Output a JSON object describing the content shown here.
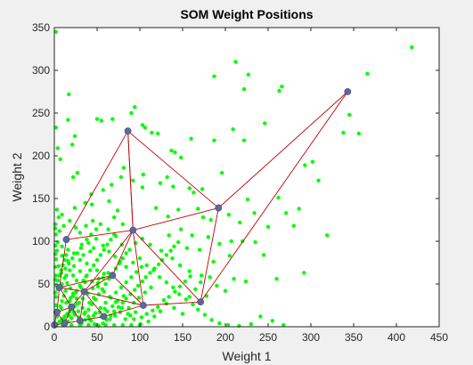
{
  "chart_data": {
    "type": "scatter",
    "title": "SOM Weight Positions",
    "xlabel": "Weight 1",
    "ylabel": "Weight 2",
    "xlim": [
      0,
      450
    ],
    "ylim": [
      0,
      350
    ],
    "xticks": [
      0,
      50,
      100,
      150,
      200,
      250,
      300,
      350,
      400,
      450
    ],
    "yticks": [
      0,
      50,
      100,
      150,
      200,
      250,
      300,
      350
    ],
    "grid": false,
    "colors": {
      "inputs": "#00ff00",
      "neurons": "#5b6a9a",
      "neighbor_links": "#c00000",
      "background": "#ffffff",
      "figure_background": "#f0f0f0"
    },
    "neurons": [
      {
        "id": "n1",
        "x": 0,
        "y": 2
      },
      {
        "id": "n2",
        "x": 3,
        "y": 17
      },
      {
        "id": "n3",
        "x": 12,
        "y": 4
      },
      {
        "id": "n4",
        "x": 20,
        "y": 23
      },
      {
        "id": "n5",
        "x": 30,
        "y": 7
      },
      {
        "id": "n6",
        "x": 35,
        "y": 41
      },
      {
        "id": "n7",
        "x": 6,
        "y": 46
      },
      {
        "id": "n8",
        "x": 58,
        "y": 12
      },
      {
        "id": "n9",
        "x": 14,
        "y": 102
      },
      {
        "id": "n10",
        "x": 68,
        "y": 60
      },
      {
        "id": "n11",
        "x": 92,
        "y": 113
      },
      {
        "id": "n12",
        "x": 104,
        "y": 25
      },
      {
        "id": "n13",
        "x": 86,
        "y": 229
      },
      {
        "id": "n14",
        "x": 192,
        "y": 139
      },
      {
        "id": "n15",
        "x": 171,
        "y": 29
      },
      {
        "id": "n16",
        "x": 343,
        "y": 275
      }
    ],
    "links": [
      [
        "n1",
        "n2"
      ],
      [
        "n1",
        "n3"
      ],
      [
        "n2",
        "n3"
      ],
      [
        "n2",
        "n4"
      ],
      [
        "n3",
        "n4"
      ],
      [
        "n3",
        "n5"
      ],
      [
        "n4",
        "n5"
      ],
      [
        "n2",
        "n7"
      ],
      [
        "n4",
        "n6"
      ],
      [
        "n4",
        "n7"
      ],
      [
        "n5",
        "n6"
      ],
      [
        "n5",
        "n8"
      ],
      [
        "n6",
        "n8"
      ],
      [
        "n6",
        "n7"
      ],
      [
        "n6",
        "n10"
      ],
      [
        "n6",
        "n11"
      ],
      [
        "n6",
        "n12"
      ],
      [
        "n7",
        "n9"
      ],
      [
        "n7",
        "n10"
      ],
      [
        "n8",
        "n12"
      ],
      [
        "n9",
        "n11"
      ],
      [
        "n9",
        "n13"
      ],
      [
        "n10",
        "n11"
      ],
      [
        "n10",
        "n12"
      ],
      [
        "n11",
        "n12"
      ],
      [
        "n11",
        "n13"
      ],
      [
        "n11",
        "n14"
      ],
      [
        "n11",
        "n15"
      ],
      [
        "n12",
        "n15"
      ],
      [
        "n13",
        "n14"
      ],
      [
        "n14",
        "n15"
      ],
      [
        "n14",
        "n16"
      ],
      [
        "n15",
        "n16"
      ],
      [
        "n13",
        "n11"
      ]
    ],
    "inputs": [
      [
        2,
        345
      ],
      [
        418,
        327
      ],
      [
        366,
        296
      ],
      [
        338,
        227
      ],
      [
        345,
        248
      ],
      [
        212,
        310
      ],
      [
        227,
        295
      ],
      [
        266,
        281
      ],
      [
        187,
        293
      ],
      [
        222,
        278
      ],
      [
        263,
        276
      ],
      [
        94,
        257
      ],
      [
        90,
        250
      ],
      [
        68,
        243
      ],
      [
        17,
        272
      ],
      [
        50,
        243
      ],
      [
        55,
        241
      ],
      [
        103,
        236
      ],
      [
        106,
        233
      ],
      [
        114,
        227
      ],
      [
        16,
        242
      ],
      [
        24,
        223
      ],
      [
        21,
        213
      ],
      [
        137,
        206
      ],
      [
        148,
        198
      ],
      [
        196,
        180
      ],
      [
        209,
        231
      ],
      [
        222,
        218
      ],
      [
        246,
        238
      ],
      [
        187,
        218
      ],
      [
        160,
        220
      ],
      [
        141,
        204
      ],
      [
        121,
        226
      ],
      [
        2,
        233
      ],
      [
        4,
        209
      ],
      [
        7,
        196
      ],
      [
        293,
        189
      ],
      [
        309,
        171
      ],
      [
        302,
        193
      ],
      [
        356,
        226
      ],
      [
        27,
        180
      ],
      [
        22,
        175
      ],
      [
        78,
        175
      ],
      [
        81,
        186
      ],
      [
        104,
        178
      ],
      [
        132,
        175
      ],
      [
        158,
        162
      ],
      [
        163,
        157
      ],
      [
        173,
        161
      ],
      [
        139,
        164
      ],
      [
        124,
        168
      ],
      [
        103,
        163
      ],
      [
        92,
        171
      ],
      [
        43,
        155
      ],
      [
        57,
        160
      ],
      [
        67,
        166
      ],
      [
        36,
        145
      ],
      [
        44,
        143
      ],
      [
        24,
        139
      ],
      [
        3,
        137
      ],
      [
        5,
        128
      ],
      [
        9,
        131
      ],
      [
        226,
        149
      ],
      [
        234,
        133
      ],
      [
        204,
        131
      ],
      [
        262,
        151
      ],
      [
        271,
        133
      ],
      [
        286,
        138
      ],
      [
        250,
        117
      ],
      [
        217,
        122
      ],
      [
        183,
        125
      ],
      [
        174,
        128
      ],
      [
        168,
        138
      ],
      [
        145,
        137
      ],
      [
        133,
        129
      ],
      [
        119,
        139
      ],
      [
        74,
        136
      ],
      [
        64,
        147
      ],
      [
        70,
        128
      ],
      [
        80,
        120
      ],
      [
        280,
        118
      ],
      [
        319,
        107
      ],
      [
        220,
        100
      ],
      [
        235,
        99
      ],
      [
        207,
        100
      ],
      [
        193,
        97
      ],
      [
        180,
        105
      ],
      [
        161,
        107
      ],
      [
        148,
        114
      ],
      [
        134,
        107
      ],
      [
        155,
        92
      ],
      [
        170,
        90
      ],
      [
        186,
        76
      ],
      [
        205,
        83
      ],
      [
        245,
        84
      ],
      [
        292,
        63
      ],
      [
        260,
        56
      ],
      [
        224,
        53
      ],
      [
        210,
        56
      ],
      [
        200,
        42
      ],
      [
        190,
        48
      ],
      [
        172,
        60
      ],
      [
        158,
        65
      ],
      [
        147,
        72
      ],
      [
        138,
        80
      ],
      [
        125,
        89
      ],
      [
        112,
        96
      ],
      [
        103,
        103
      ],
      [
        95,
        98
      ],
      [
        88,
        90
      ],
      [
        79,
        96
      ],
      [
        72,
        106
      ],
      [
        63,
        114
      ],
      [
        54,
        120
      ],
      [
        45,
        124
      ],
      [
        37,
        118
      ],
      [
        30,
        110
      ],
      [
        25,
        116
      ],
      [
        18,
        124
      ],
      [
        11,
        118
      ],
      [
        6,
        112
      ],
      [
        2,
        108
      ],
      [
        4,
        99
      ],
      [
        9,
        94
      ],
      [
        16,
        90
      ],
      [
        23,
        86
      ],
      [
        31,
        92
      ],
      [
        40,
        98
      ],
      [
        49,
        103
      ],
      [
        57,
        95
      ],
      [
        64,
        88
      ],
      [
        71,
        82
      ],
      [
        77,
        76
      ],
      [
        84,
        70
      ],
      [
        92,
        75
      ],
      [
        100,
        80
      ],
      [
        108,
        72
      ],
      [
        116,
        66
      ],
      [
        123,
        58
      ],
      [
        131,
        52
      ],
      [
        139,
        46
      ],
      [
        146,
        38
      ],
      [
        154,
        32
      ],
      [
        162,
        26
      ],
      [
        168,
        20
      ],
      [
        176,
        14
      ],
      [
        184,
        8
      ],
      [
        193,
        4
      ],
      [
        203,
        2
      ],
      [
        216,
        1
      ],
      [
        230,
        3
      ],
      [
        241,
        12
      ],
      [
        255,
        7
      ],
      [
        268,
        2
      ],
      [
        150,
        15
      ],
      [
        140,
        22
      ],
      [
        131,
        27
      ],
      [
        124,
        18
      ],
      [
        117,
        12
      ],
      [
        110,
        6
      ],
      [
        101,
        3
      ],
      [
        93,
        9
      ],
      [
        86,
        15
      ],
      [
        79,
        22
      ],
      [
        72,
        29
      ],
      [
        65,
        35
      ],
      [
        58,
        41
      ],
      [
        51,
        47
      ],
      [
        44,
        53
      ],
      [
        37,
        59
      ],
      [
        30,
        65
      ],
      [
        23,
        71
      ],
      [
        16,
        77
      ],
      [
        9,
        83
      ],
      [
        3,
        89
      ],
      [
        2,
        79
      ],
      [
        5,
        71
      ],
      [
        8,
        63
      ],
      [
        12,
        57
      ],
      [
        15,
        51
      ],
      [
        19,
        45
      ],
      [
        22,
        39
      ],
      [
        26,
        33
      ],
      [
        29,
        28
      ],
      [
        33,
        22
      ],
      [
        36,
        17
      ],
      [
        40,
        12
      ],
      [
        43,
        7
      ],
      [
        47,
        3
      ],
      [
        52,
        1
      ],
      [
        57,
        4
      ],
      [
        61,
        8
      ],
      [
        66,
        13
      ],
      [
        70,
        18
      ],
      [
        75,
        23
      ],
      [
        80,
        28
      ],
      [
        84,
        33
      ],
      [
        89,
        38
      ],
      [
        94,
        43
      ],
      [
        98,
        48
      ],
      [
        103,
        53
      ],
      [
        107,
        58
      ],
      [
        112,
        63
      ],
      [
        117,
        68
      ],
      [
        122,
        73
      ],
      [
        126,
        78
      ],
      [
        131,
        84
      ],
      [
        136,
        89
      ],
      [
        140,
        94
      ],
      [
        145,
        99
      ],
      [
        3,
        3
      ],
      [
        6,
        6
      ],
      [
        9,
        9
      ],
      [
        12,
        12
      ],
      [
        15,
        15
      ],
      [
        18,
        18
      ],
      [
        21,
        21
      ],
      [
        24,
        24
      ],
      [
        27,
        27
      ],
      [
        3,
        12
      ],
      [
        5,
        18
      ],
      [
        7,
        24
      ],
      [
        9,
        30
      ],
      [
        11,
        36
      ],
      [
        13,
        42
      ],
      [
        2,
        48
      ],
      [
        4,
        54
      ],
      [
        6,
        60
      ],
      [
        8,
        66
      ],
      [
        10,
        72
      ],
      [
        12,
        78
      ],
      [
        14,
        84
      ],
      [
        16,
        6
      ],
      [
        20,
        10
      ],
      [
        24,
        14
      ],
      [
        28,
        18
      ],
      [
        32,
        4
      ],
      [
        36,
        8
      ],
      [
        40,
        20
      ],
      [
        44,
        26
      ],
      [
        48,
        32
      ],
      [
        52,
        38
      ],
      [
        56,
        44
      ],
      [
        60,
        50
      ],
      [
        64,
        56
      ],
      [
        68,
        62
      ],
      [
        72,
        68
      ],
      [
        76,
        74
      ],
      [
        80,
        80
      ],
      [
        84,
        86
      ],
      [
        18,
        30
      ],
      [
        22,
        36
      ],
      [
        26,
        42
      ],
      [
        30,
        48
      ],
      [
        34,
        54
      ],
      [
        38,
        60
      ],
      [
        42,
        66
      ],
      [
        46,
        72
      ],
      [
        50,
        78
      ],
      [
        54,
        84
      ],
      [
        58,
        90
      ],
      [
        62,
        96
      ],
      [
        66,
        102
      ],
      [
        70,
        108
      ],
      [
        33,
        33
      ],
      [
        39,
        39
      ],
      [
        45,
        45
      ],
      [
        51,
        51
      ],
      [
        57,
        57
      ],
      [
        63,
        63
      ],
      [
        10,
        2
      ],
      [
        20,
        2
      ],
      [
        30,
        2
      ],
      [
        40,
        2
      ],
      [
        50,
        2
      ],
      [
        60,
        2
      ],
      [
        70,
        2
      ],
      [
        80,
        2
      ],
      [
        90,
        2
      ],
      [
        100,
        2
      ],
      [
        1,
        40
      ],
      [
        1,
        55
      ],
      [
        1,
        70
      ],
      [
        1,
        85
      ],
      [
        1,
        95
      ],
      [
        1,
        115
      ],
      [
        1,
        120
      ],
      [
        2,
        25
      ],
      [
        2,
        35
      ],
      [
        2,
        60
      ],
      [
        48,
        16
      ],
      [
        54,
        22
      ],
      [
        60,
        28
      ],
      [
        66,
        34
      ],
      [
        72,
        40
      ],
      [
        78,
        46
      ],
      [
        84,
        52
      ],
      [
        90,
        58
      ],
      [
        96,
        64
      ],
      [
        102,
        70
      ],
      [
        14,
        60
      ],
      [
        18,
        66
      ],
      [
        22,
        60
      ],
      [
        26,
        54
      ],
      [
        30,
        78
      ],
      [
        34,
        84
      ],
      [
        38,
        74
      ],
      [
        42,
        88
      ],
      [
        46,
        92
      ],
      [
        50,
        66
      ],
      [
        55,
        12
      ],
      [
        62,
        18
      ],
      [
        68,
        24
      ],
      [
        74,
        30
      ],
      [
        81,
        36
      ],
      [
        87,
        22
      ],
      [
        93,
        28
      ],
      [
        99,
        34
      ],
      [
        106,
        40
      ],
      [
        113,
        46
      ],
      [
        8,
        22
      ],
      [
        14,
        28
      ],
      [
        19,
        34
      ],
      [
        25,
        40
      ],
      [
        31,
        46
      ],
      [
        36,
        52
      ],
      [
        41,
        28
      ],
      [
        46,
        34
      ],
      [
        52,
        56
      ],
      [
        58,
        62
      ],
      [
        4,
        44
      ],
      [
        9,
        50
      ],
      [
        13,
        68
      ],
      [
        17,
        74
      ],
      [
        21,
        80
      ],
      [
        27,
        86
      ],
      [
        32,
        96
      ],
      [
        38,
        102
      ],
      [
        43,
        108
      ],
      [
        49,
        114
      ],
      [
        11,
        9
      ],
      [
        17,
        13
      ],
      [
        23,
        17
      ],
      [
        29,
        11
      ],
      [
        35,
        15
      ],
      [
        41,
        9
      ],
      [
        46,
        13
      ],
      [
        53,
        17
      ],
      [
        59,
        21
      ],
      [
        65,
        9
      ],
      [
        71,
        13
      ],
      [
        77,
        17
      ],
      [
        83,
        9
      ],
      [
        89,
        13
      ],
      [
        95,
        17
      ],
      [
        102,
        11
      ],
      [
        108,
        15
      ],
      [
        115,
        19
      ],
      [
        121,
        23
      ],
      [
        128,
        31
      ],
      [
        134,
        35
      ],
      [
        141,
        41
      ],
      [
        147,
        47
      ],
      [
        153,
        53
      ],
      [
        159,
        59
      ],
      [
        165,
        44
      ],
      [
        171,
        52
      ],
      [
        178,
        36
      ],
      [
        182,
        58
      ],
      [
        158,
        35
      ]
    ]
  }
}
